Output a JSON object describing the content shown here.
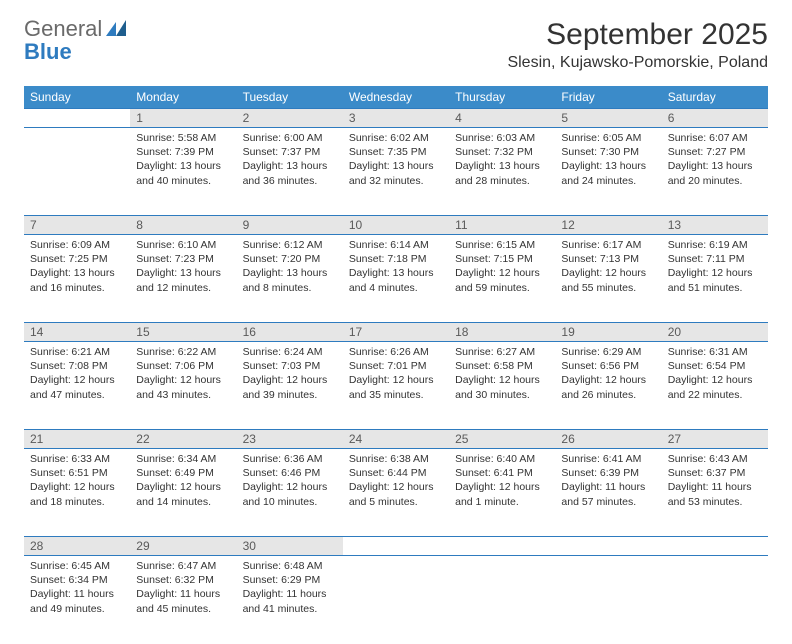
{
  "logo": {
    "general": "General",
    "blue": "Blue"
  },
  "title": "September 2025",
  "location": "Slesin, Kujawsko-Pomorskie, Poland",
  "weekday_bg": "#3b8bc9",
  "border_color": "#2e7bbf",
  "shade_color": "#e6e6e6",
  "weekdays": [
    "Sunday",
    "Monday",
    "Tuesday",
    "Wednesday",
    "Thursday",
    "Friday",
    "Saturday"
  ],
  "weeks": [
    {
      "nums": [
        "",
        "1",
        "2",
        "3",
        "4",
        "5",
        "6"
      ],
      "shaded": [
        false,
        true,
        true,
        true,
        true,
        true,
        true
      ],
      "cells": [
        null,
        {
          "sunrise": "Sunrise: 5:58 AM",
          "sunset": "Sunset: 7:39 PM",
          "day1": "Daylight: 13 hours",
          "day2": "and 40 minutes."
        },
        {
          "sunrise": "Sunrise: 6:00 AM",
          "sunset": "Sunset: 7:37 PM",
          "day1": "Daylight: 13 hours",
          "day2": "and 36 minutes."
        },
        {
          "sunrise": "Sunrise: 6:02 AM",
          "sunset": "Sunset: 7:35 PM",
          "day1": "Daylight: 13 hours",
          "day2": "and 32 minutes."
        },
        {
          "sunrise": "Sunrise: 6:03 AM",
          "sunset": "Sunset: 7:32 PM",
          "day1": "Daylight: 13 hours",
          "day2": "and 28 minutes."
        },
        {
          "sunrise": "Sunrise: 6:05 AM",
          "sunset": "Sunset: 7:30 PM",
          "day1": "Daylight: 13 hours",
          "day2": "and 24 minutes."
        },
        {
          "sunrise": "Sunrise: 6:07 AM",
          "sunset": "Sunset: 7:27 PM",
          "day1": "Daylight: 13 hours",
          "day2": "and 20 minutes."
        }
      ]
    },
    {
      "nums": [
        "7",
        "8",
        "9",
        "10",
        "11",
        "12",
        "13"
      ],
      "shaded": [
        true,
        true,
        true,
        true,
        true,
        true,
        true
      ],
      "cells": [
        {
          "sunrise": "Sunrise: 6:09 AM",
          "sunset": "Sunset: 7:25 PM",
          "day1": "Daylight: 13 hours",
          "day2": "and 16 minutes."
        },
        {
          "sunrise": "Sunrise: 6:10 AM",
          "sunset": "Sunset: 7:23 PM",
          "day1": "Daylight: 13 hours",
          "day2": "and 12 minutes."
        },
        {
          "sunrise": "Sunrise: 6:12 AM",
          "sunset": "Sunset: 7:20 PM",
          "day1": "Daylight: 13 hours",
          "day2": "and 8 minutes."
        },
        {
          "sunrise": "Sunrise: 6:14 AM",
          "sunset": "Sunset: 7:18 PM",
          "day1": "Daylight: 13 hours",
          "day2": "and 4 minutes."
        },
        {
          "sunrise": "Sunrise: 6:15 AM",
          "sunset": "Sunset: 7:15 PM",
          "day1": "Daylight: 12 hours",
          "day2": "and 59 minutes."
        },
        {
          "sunrise": "Sunrise: 6:17 AM",
          "sunset": "Sunset: 7:13 PM",
          "day1": "Daylight: 12 hours",
          "day2": "and 55 minutes."
        },
        {
          "sunrise": "Sunrise: 6:19 AM",
          "sunset": "Sunset: 7:11 PM",
          "day1": "Daylight: 12 hours",
          "day2": "and 51 minutes."
        }
      ]
    },
    {
      "nums": [
        "14",
        "15",
        "16",
        "17",
        "18",
        "19",
        "20"
      ],
      "shaded": [
        true,
        true,
        true,
        true,
        true,
        true,
        true
      ],
      "cells": [
        {
          "sunrise": "Sunrise: 6:21 AM",
          "sunset": "Sunset: 7:08 PM",
          "day1": "Daylight: 12 hours",
          "day2": "and 47 minutes."
        },
        {
          "sunrise": "Sunrise: 6:22 AM",
          "sunset": "Sunset: 7:06 PM",
          "day1": "Daylight: 12 hours",
          "day2": "and 43 minutes."
        },
        {
          "sunrise": "Sunrise: 6:24 AM",
          "sunset": "Sunset: 7:03 PM",
          "day1": "Daylight: 12 hours",
          "day2": "and 39 minutes."
        },
        {
          "sunrise": "Sunrise: 6:26 AM",
          "sunset": "Sunset: 7:01 PM",
          "day1": "Daylight: 12 hours",
          "day2": "and 35 minutes."
        },
        {
          "sunrise": "Sunrise: 6:27 AM",
          "sunset": "Sunset: 6:58 PM",
          "day1": "Daylight: 12 hours",
          "day2": "and 30 minutes."
        },
        {
          "sunrise": "Sunrise: 6:29 AM",
          "sunset": "Sunset: 6:56 PM",
          "day1": "Daylight: 12 hours",
          "day2": "and 26 minutes."
        },
        {
          "sunrise": "Sunrise: 6:31 AM",
          "sunset": "Sunset: 6:54 PM",
          "day1": "Daylight: 12 hours",
          "day2": "and 22 minutes."
        }
      ]
    },
    {
      "nums": [
        "21",
        "22",
        "23",
        "24",
        "25",
        "26",
        "27"
      ],
      "shaded": [
        true,
        true,
        true,
        true,
        true,
        true,
        true
      ],
      "cells": [
        {
          "sunrise": "Sunrise: 6:33 AM",
          "sunset": "Sunset: 6:51 PM",
          "day1": "Daylight: 12 hours",
          "day2": "and 18 minutes."
        },
        {
          "sunrise": "Sunrise: 6:34 AM",
          "sunset": "Sunset: 6:49 PM",
          "day1": "Daylight: 12 hours",
          "day2": "and 14 minutes."
        },
        {
          "sunrise": "Sunrise: 6:36 AM",
          "sunset": "Sunset: 6:46 PM",
          "day1": "Daylight: 12 hours",
          "day2": "and 10 minutes."
        },
        {
          "sunrise": "Sunrise: 6:38 AM",
          "sunset": "Sunset: 6:44 PM",
          "day1": "Daylight: 12 hours",
          "day2": "and 5 minutes."
        },
        {
          "sunrise": "Sunrise: 6:40 AM",
          "sunset": "Sunset: 6:41 PM",
          "day1": "Daylight: 12 hours",
          "day2": "and 1 minute."
        },
        {
          "sunrise": "Sunrise: 6:41 AM",
          "sunset": "Sunset: 6:39 PM",
          "day1": "Daylight: 11 hours",
          "day2": "and 57 minutes."
        },
        {
          "sunrise": "Sunrise: 6:43 AM",
          "sunset": "Sunset: 6:37 PM",
          "day1": "Daylight: 11 hours",
          "day2": "and 53 minutes."
        }
      ]
    },
    {
      "nums": [
        "28",
        "29",
        "30",
        "",
        "",
        "",
        ""
      ],
      "shaded": [
        true,
        true,
        true,
        false,
        false,
        false,
        false
      ],
      "cells": [
        {
          "sunrise": "Sunrise: 6:45 AM",
          "sunset": "Sunset: 6:34 PM",
          "day1": "Daylight: 11 hours",
          "day2": "and 49 minutes."
        },
        {
          "sunrise": "Sunrise: 6:47 AM",
          "sunset": "Sunset: 6:32 PM",
          "day1": "Daylight: 11 hours",
          "day2": "and 45 minutes."
        },
        {
          "sunrise": "Sunrise: 6:48 AM",
          "sunset": "Sunset: 6:29 PM",
          "day1": "Daylight: 11 hours",
          "day2": "and 41 minutes."
        },
        null,
        null,
        null,
        null
      ]
    }
  ]
}
